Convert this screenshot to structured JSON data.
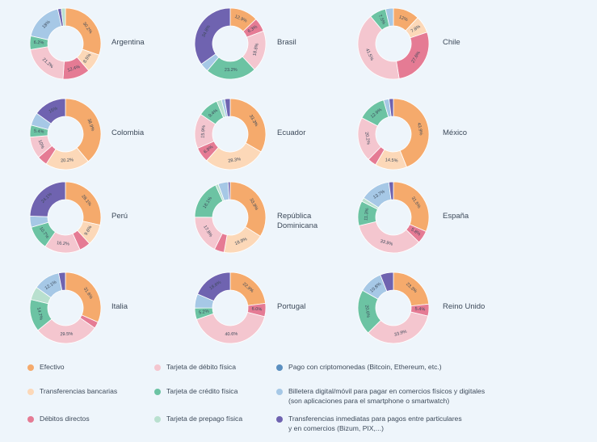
{
  "colors": {
    "efectivo": "#f5aa6c",
    "debito": "#f4c6cf",
    "cripto": "#5b8fc0",
    "transferencias": "#fcd8b8",
    "credito": "#6cc3a3",
    "billetera": "#a6c8e6",
    "debitos_directos": "#e57b94",
    "prepago": "#b9e0cf",
    "inmediatas": "#6f63b0"
  },
  "legend": [
    {
      "key": "efectivo",
      "label": "Efectivo"
    },
    {
      "key": "debito",
      "label": "Tarjeta de débito física"
    },
    {
      "key": "cripto",
      "label": "Pago con criptomonedas (Bitcoin, Ethereum, etc.)"
    },
    {
      "key": "transferencias",
      "label": "Transferencias bancarias"
    },
    {
      "key": "credito",
      "label": "Tarjeta de crédito física"
    },
    {
      "key": "billetera",
      "label": "Billetera digital/móvil para pagar en comercios físicos y digitales\n(son aplicaciones para el smartphone o smartwatch)"
    },
    {
      "key": "debitos_directos",
      "label": "Débitos directos"
    },
    {
      "key": "prepago",
      "label": "Tarjeta de prepago física"
    },
    {
      "key": "inmediatas",
      "label": "Transferencias inmediatas para pagos entre particulares\ny en comercios (Bizum, PIX,...)"
    }
  ],
  "chart_data": [
    {
      "type": "pie",
      "title": "Argentina",
      "slices": [
        {
          "key": "efectivo",
          "value": 30.2,
          "label": "30.2%"
        },
        {
          "key": "transferencias",
          "value": 8.5,
          "label": "8.5%"
        },
        {
          "key": "debitos_directos",
          "value": 12.4,
          "label": "12.4%"
        },
        {
          "key": "debito",
          "value": 21.2,
          "label": "21.2%"
        },
        {
          "key": "credito",
          "value": 6.2,
          "label": "6.2%"
        },
        {
          "key": "billetera",
          "value": 18.0,
          "label": "18%"
        },
        {
          "key": "inmediatas",
          "value": 1.6,
          "label": ""
        },
        {
          "key": "prepago",
          "value": 1.9,
          "label": ""
        }
      ]
    },
    {
      "type": "pie",
      "title": "Brasil",
      "slices": [
        {
          "key": "efectivo",
          "value": 12.9,
          "label": "12.9%"
        },
        {
          "key": "debitos_directos",
          "value": 6.3,
          "label": "6.3%"
        },
        {
          "key": "debito",
          "value": 18.8,
          "label": "18.8%"
        },
        {
          "key": "credito",
          "value": 23.2,
          "label": "23.2%"
        },
        {
          "key": "billetera",
          "value": 4.0,
          "label": ""
        },
        {
          "key": "inmediatas",
          "value": 34.8,
          "label": "34.8%"
        }
      ]
    },
    {
      "type": "pie",
      "title": "Chile",
      "slices": [
        {
          "key": "efectivo",
          "value": 12.0,
          "label": "12%"
        },
        {
          "key": "transferencias",
          "value": 7.8,
          "label": "7.8%"
        },
        {
          "key": "debitos_directos",
          "value": 27.6,
          "label": "27.6%"
        },
        {
          "key": "debito",
          "value": 41.5,
          "label": "41.5%"
        },
        {
          "key": "credito",
          "value": 7.5,
          "label": "7.5%"
        },
        {
          "key": "billetera",
          "value": 3.6,
          "label": ""
        }
      ]
    },
    {
      "type": "pie",
      "title": "Colombia",
      "slices": [
        {
          "key": "efectivo",
          "value": 38.9,
          "label": "38.9%"
        },
        {
          "key": "transferencias",
          "value": 20.2,
          "label": "20.2%"
        },
        {
          "key": "debitos_directos",
          "value": 4.6,
          "label": ""
        },
        {
          "key": "debito",
          "value": 10.0,
          "label": "10%"
        },
        {
          "key": "credito",
          "value": 5.4,
          "label": "5.4%"
        },
        {
          "key": "billetera",
          "value": 5.9,
          "label": ""
        },
        {
          "key": "inmediatas",
          "value": 15.0,
          "label": "15%"
        }
      ]
    },
    {
      "type": "pie",
      "title": "Ecuador",
      "slices": [
        {
          "key": "efectivo",
          "value": 33.3,
          "label": "33.3%"
        },
        {
          "key": "transferencias",
          "value": 28.3,
          "label": "28.3%"
        },
        {
          "key": "debitos_directos",
          "value": 6.9,
          "label": "6.9%"
        },
        {
          "key": "debito",
          "value": 15.9,
          "label": "15.9%"
        },
        {
          "key": "credito",
          "value": 9.4,
          "label": "9.4%"
        },
        {
          "key": "prepago",
          "value": 2.2,
          "label": ""
        },
        {
          "key": "billetera",
          "value": 1.5,
          "label": ""
        },
        {
          "key": "inmediatas",
          "value": 2.5,
          "label": ""
        }
      ]
    },
    {
      "type": "pie",
      "title": "México",
      "slices": [
        {
          "key": "efectivo",
          "value": 43.9,
          "label": "43.9%"
        },
        {
          "key": "transferencias",
          "value": 14.5,
          "label": "14.5%"
        },
        {
          "key": "debitos_directos",
          "value": 4.0,
          "label": ""
        },
        {
          "key": "debito",
          "value": 20.2,
          "label": "20.2%"
        },
        {
          "key": "credito",
          "value": 12.9,
          "label": "12.9%"
        },
        {
          "key": "billetera",
          "value": 2.5,
          "label": ""
        },
        {
          "key": "inmediatas",
          "value": 2.0,
          "label": ""
        }
      ]
    },
    {
      "type": "pie",
      "title": "Perú",
      "slices": [
        {
          "key": "efectivo",
          "value": 28.1,
          "label": "28.1%"
        },
        {
          "key": "transferencias",
          "value": 9.6,
          "label": "9.6%"
        },
        {
          "key": "debitos_directos",
          "value": 5.0,
          "label": ""
        },
        {
          "key": "debito",
          "value": 16.2,
          "label": "16.2%"
        },
        {
          "key": "credito",
          "value": 10.7,
          "label": "10.7%"
        },
        {
          "key": "billetera",
          "value": 5.0,
          "label": ""
        },
        {
          "key": "inmediatas",
          "value": 24.1,
          "label": "24.1%"
        }
      ]
    },
    {
      "type": "pie",
      "title": "República Dominicana",
      "slices": [
        {
          "key": "efectivo",
          "value": 33.9,
          "label": "33.9%"
        },
        {
          "key": "transferencias",
          "value": 18.9,
          "label": "18.9%"
        },
        {
          "key": "debitos_directos",
          "value": 4.5,
          "label": ""
        },
        {
          "key": "debito",
          "value": 17.8,
          "label": "17.8%"
        },
        {
          "key": "credito",
          "value": 18.1,
          "label": "18.1%"
        },
        {
          "key": "prepago",
          "value": 1.3,
          "label": ""
        },
        {
          "key": "billetera",
          "value": 4.5,
          "label": ""
        },
        {
          "key": "inmediatas",
          "value": 1.0,
          "label": ""
        }
      ]
    },
    {
      "type": "pie",
      "title": "España",
      "slices": [
        {
          "key": "efectivo",
          "value": 31.5,
          "label": "31.5%"
        },
        {
          "key": "debitos_directos",
          "value": 5.8,
          "label": "5.8%"
        },
        {
          "key": "debito",
          "value": 33.9,
          "label": "33.9%"
        },
        {
          "key": "credito",
          "value": 11.3,
          "label": "11.3%"
        },
        {
          "key": "prepago",
          "value": 1.7,
          "label": ""
        },
        {
          "key": "billetera",
          "value": 13.7,
          "label": "13.7%"
        },
        {
          "key": "inmediatas",
          "value": 2.1,
          "label": ""
        }
      ]
    },
    {
      "type": "pie",
      "title": "Italia",
      "slices": [
        {
          "key": "efectivo",
          "value": 31.6,
          "label": "31.6%"
        },
        {
          "key": "debitos_directos",
          "value": 3.0,
          "label": ""
        },
        {
          "key": "debito",
          "value": 29.5,
          "label": "29.5%"
        },
        {
          "key": "credito",
          "value": 14.7,
          "label": "14.7%"
        },
        {
          "key": "prepago",
          "value": 6.0,
          "label": ""
        },
        {
          "key": "billetera",
          "value": 12.1,
          "label": "12.1%"
        },
        {
          "key": "inmediatas",
          "value": 3.1,
          "label": ""
        }
      ]
    },
    {
      "type": "pie",
      "title": "Portugal",
      "slices": [
        {
          "key": "efectivo",
          "value": 22.9,
          "label": "22.9%"
        },
        {
          "key": "debitos_directos",
          "value": 6.0,
          "label": "6.0%"
        },
        {
          "key": "debito",
          "value": 40.6,
          "label": "40.6%"
        },
        {
          "key": "credito",
          "value": 5.2,
          "label": "5.2%"
        },
        {
          "key": "billetera",
          "value": 6.4,
          "label": ""
        },
        {
          "key": "inmediatas",
          "value": 18.6,
          "label": "18.6%"
        }
      ]
    },
    {
      "type": "pie",
      "title": "Reino Unido",
      "slices": [
        {
          "key": "efectivo",
          "value": 23.3,
          "label": "23.3%"
        },
        {
          "key": "debitos_directos",
          "value": 5.4,
          "label": "5.4%"
        },
        {
          "key": "debito",
          "value": 33.9,
          "label": "33.9%"
        },
        {
          "key": "credito",
          "value": 20.6,
          "label": "20.6%"
        },
        {
          "key": "billetera",
          "value": 10.8,
          "label": "10.8%"
        },
        {
          "key": "inmediatas",
          "value": 6.0,
          "label": ""
        }
      ]
    }
  ]
}
